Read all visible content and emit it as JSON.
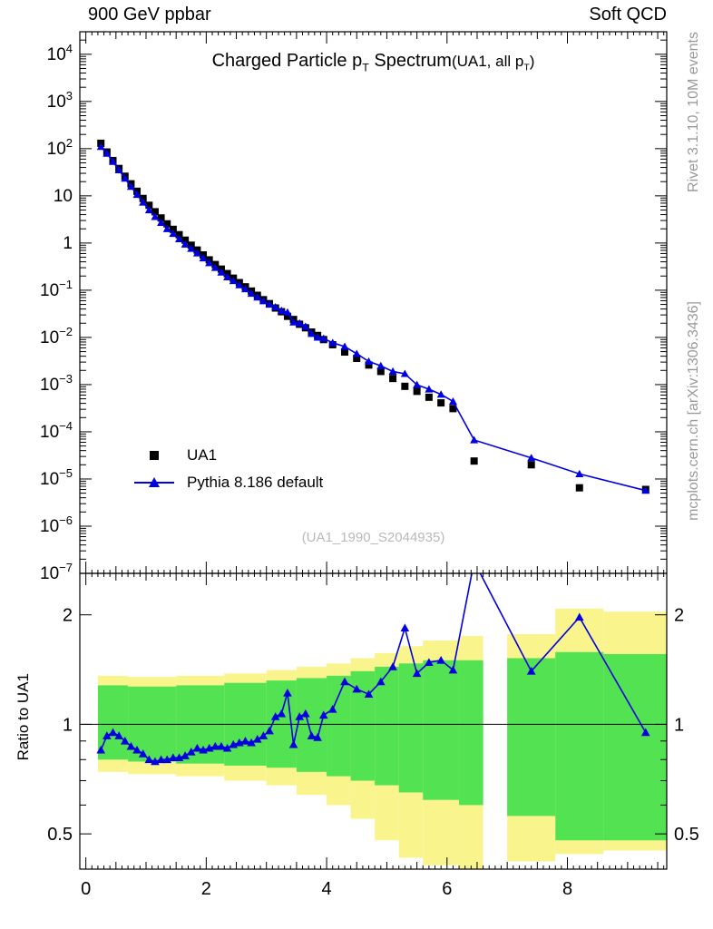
{
  "header": {
    "left": "900 GeV ppbar",
    "right": "Soft QCD"
  },
  "plot": {
    "title": {
      "pre": "Charged Particle p",
      "sub": "T",
      "post": " Spectrum"
    },
    "title_suffix": {
      "pre": "(UA1, all p",
      "sub": "T",
      "post": ")"
    },
    "watermark": "(UA1_1990_S2044935)",
    "legend": {
      "items": [
        {
          "label": "UA1"
        },
        {
          "label": "Pythia 8.186 default"
        }
      ]
    },
    "side_text_right_top": "Rivet 3.1.10,  10M events",
    "side_text_right_bottom": "mcplots.cern.ch [arXiv:1306.3436]",
    "ratio_ylabel": "Ratio to UA1"
  },
  "colors": {
    "pythia_blue": "#0000e0",
    "data_black": "#000000",
    "band_outer_yellow": "#f9f48c",
    "band_inner_green": "#52e252",
    "watermark_gray": "#b9b9b9",
    "side_text_gray": "#9a9a9a",
    "frame_black": "#000000"
  },
  "chart_data": [
    {
      "panel": "main",
      "type": "scatter",
      "title": "Charged Particle pT Spectrum (UA1, all pT)",
      "xlabel": "",
      "ylabel": "",
      "log_y": true,
      "xlim": [
        -0.1,
        9.65
      ],
      "ylim": [
        1e-07,
        30000
      ],
      "xticks": [
        0,
        2,
        4,
        6,
        8
      ],
      "ytick_exponents": [
        4,
        3,
        2,
        1,
        0,
        -1,
        -2,
        -3,
        -4,
        -5,
        -6,
        -7
      ],
      "legend_position": "inside-left-lower",
      "x": [
        0.25,
        0.35,
        0.45,
        0.55,
        0.65,
        0.75,
        0.85,
        0.95,
        1.05,
        1.15,
        1.25,
        1.35,
        1.45,
        1.55,
        1.65,
        1.75,
        1.85,
        1.95,
        2.05,
        2.15,
        2.25,
        2.35,
        2.45,
        2.55,
        2.65,
        2.75,
        2.85,
        2.95,
        3.05,
        3.15,
        3.25,
        3.35,
        3.45,
        3.55,
        3.65,
        3.75,
        3.85,
        3.95,
        4.1,
        4.3,
        4.5,
        4.7,
        4.9,
        5.1,
        5.3,
        5.5,
        5.7,
        5.9,
        6.1,
        6.45,
        7.4,
        8.2,
        9.3
      ],
      "series": [
        {
          "name": "UA1",
          "marker": "filled-square",
          "color": "#000000",
          "values": [
            130,
            85,
            56,
            38,
            26,
            18,
            12.5,
            8.8,
            6.3,
            4.6,
            3.4,
            2.55,
            1.95,
            1.5,
            1.15,
            0.9,
            0.71,
            0.56,
            0.44,
            0.35,
            0.28,
            0.225,
            0.18,
            0.145,
            0.118,
            0.096,
            0.078,
            0.063,
            0.052,
            0.042,
            0.035,
            0.028,
            0.024,
            0.019,
            0.016,
            0.013,
            0.011,
            0.009,
            0.007,
            0.0049,
            0.0036,
            0.0026,
            0.0019,
            0.00135,
            0.00092,
            0.00072,
            0.00054,
            0.00041,
            0.00031,
            2.4e-05,
            2e-05,
            6.5e-06,
            6e-06
          ]
        },
        {
          "name": "Pythia 8.186 default",
          "marker": "filled-triangle",
          "color": "#0000e0",
          "line": true,
          "values": [
            110,
            79,
            53,
            35.3,
            23.4,
            15.7,
            10.6,
            7.3,
            5.0,
            3.6,
            2.7,
            2.0,
            1.58,
            1.22,
            0.94,
            0.76,
            0.61,
            0.48,
            0.38,
            0.3,
            0.24,
            0.19,
            0.158,
            0.129,
            0.106,
            0.085,
            0.071,
            0.059,
            0.05,
            0.044,
            0.037,
            0.034,
            0.021,
            0.02,
            0.017,
            0.012,
            0.01,
            0.0095,
            0.0077,
            0.0064,
            0.0045,
            0.0031,
            0.0025,
            0.0019,
            0.0017,
            0.00099,
            0.0008,
            0.00062,
            0.00044,
            6.7e-05,
            2.8e-05,
            1.28e-05,
            5.7e-06
          ]
        }
      ]
    },
    {
      "panel": "ratio",
      "type": "line",
      "ylabel": "Ratio to UA1",
      "log_y": true,
      "xlim": [
        -0.1,
        9.65
      ],
      "ylim": [
        0.4,
        2.6
      ],
      "yticks": [
        0.5,
        1,
        2
      ],
      "reference_line": 1,
      "x": [
        0.25,
        0.35,
        0.45,
        0.55,
        0.65,
        0.75,
        0.85,
        0.95,
        1.05,
        1.15,
        1.25,
        1.35,
        1.45,
        1.55,
        1.65,
        1.75,
        1.85,
        1.95,
        2.05,
        2.15,
        2.25,
        2.35,
        2.45,
        2.55,
        2.65,
        2.75,
        2.85,
        2.95,
        3.05,
        3.15,
        3.25,
        3.35,
        3.45,
        3.55,
        3.65,
        3.75,
        3.85,
        3.95,
        4.1,
        4.3,
        4.5,
        4.7,
        4.9,
        5.1,
        5.3,
        5.5,
        5.7,
        5.9,
        6.1,
        6.45,
        7.4,
        8.2,
        9.3
      ],
      "ratio_pythia_over_ua1": [
        0.85,
        0.93,
        0.95,
        0.93,
        0.9,
        0.87,
        0.85,
        0.83,
        0.8,
        0.79,
        0.8,
        0.8,
        0.81,
        0.81,
        0.82,
        0.84,
        0.86,
        0.85,
        0.86,
        0.87,
        0.87,
        0.86,
        0.88,
        0.89,
        0.9,
        0.89,
        0.91,
        0.93,
        0.96,
        1.05,
        1.07,
        1.22,
        0.88,
        1.05,
        1.07,
        0.93,
        0.92,
        1.06,
        1.1,
        1.31,
        1.25,
        1.21,
        1.31,
        1.44,
        1.84,
        1.38,
        1.48,
        1.5,
        1.41,
        2.8,
        1.4,
        1.97,
        0.95
      ],
      "uncertainty_bands": {
        "outer_color": "#f9f48c",
        "inner_color": "#52e252",
        "segments": [
          {
            "x0": 0.2,
            "x1": 0.7,
            "outer": [
              0.74,
              1.36
            ],
            "inner": [
              0.8,
              1.28
            ]
          },
          {
            "x0": 0.7,
            "x1": 1.5,
            "outer": [
              0.73,
              1.35
            ],
            "inner": [
              0.79,
              1.27
            ]
          },
          {
            "x0": 1.5,
            "x1": 2.3,
            "outer": [
              0.72,
              1.36
            ],
            "inner": [
              0.78,
              1.28
            ]
          },
          {
            "x0": 2.3,
            "x1": 3.0,
            "outer": [
              0.7,
              1.38
            ],
            "inner": [
              0.77,
              1.3
            ]
          },
          {
            "x0": 3.0,
            "x1": 3.5,
            "outer": [
              0.68,
              1.41
            ],
            "inner": [
              0.76,
              1.32
            ]
          },
          {
            "x0": 3.5,
            "x1": 4.0,
            "outer": [
              0.64,
              1.44
            ],
            "inner": [
              0.74,
              1.34
            ]
          },
          {
            "x0": 4.0,
            "x1": 4.4,
            "outer": [
              0.6,
              1.47
            ],
            "inner": [
              0.72,
              1.36
            ]
          },
          {
            "x0": 4.4,
            "x1": 4.8,
            "outer": [
              0.55,
              1.52
            ],
            "inner": [
              0.7,
              1.4
            ]
          },
          {
            "x0": 4.8,
            "x1": 5.2,
            "outer": [
              0.48,
              1.57
            ],
            "inner": [
              0.68,
              1.44
            ]
          },
          {
            "x0": 5.2,
            "x1": 5.6,
            "outer": [
              0.43,
              1.64
            ],
            "inner": [
              0.65,
              1.47
            ]
          },
          {
            "x0": 5.6,
            "x1": 6.2,
            "outer": [
              0.41,
              1.7
            ],
            "inner": [
              0.62,
              1.5
            ]
          },
          {
            "x0": 6.2,
            "x1": 6.6,
            "outer": [
              0.4,
              1.75
            ],
            "inner": [
              0.6,
              1.5
            ]
          },
          {
            "x0": 7.0,
            "x1": 7.8,
            "outer": [
              0.42,
              1.77
            ],
            "inner": [
              0.56,
              1.52
            ]
          },
          {
            "x0": 7.8,
            "x1": 8.6,
            "outer": [
              0.44,
              2.08
            ],
            "inner": [
              0.48,
              1.58
            ]
          },
          {
            "x0": 8.6,
            "x1": 9.65,
            "outer": [
              0.45,
              2.04
            ],
            "inner": [
              0.48,
              1.56
            ]
          }
        ]
      }
    }
  ]
}
